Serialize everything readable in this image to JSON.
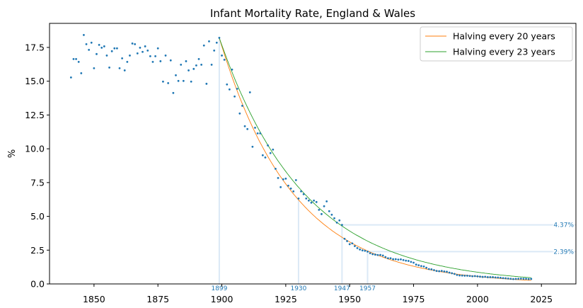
{
  "chart_data": {
    "type": "scatter",
    "title": "Infant Mortality Rate, England & Wales",
    "xlabel": "",
    "ylabel": "%",
    "xlim": [
      1832.6,
      2038.5
    ],
    "ylim": [
      0,
      19.28
    ],
    "xticks": [
      1850,
      1875,
      1900,
      1925,
      1950,
      1975,
      2000,
      2025
    ],
    "yticks": [
      "0.0",
      "2.5",
      "5.0",
      "7.5",
      "10.0",
      "12.5",
      "15.0",
      "17.5"
    ],
    "grid": false,
    "legend_position": "top-right",
    "colors": {
      "points": "#1f77b4",
      "halving20": "#ff7f0e",
      "halving23": "#2ca02c",
      "guides": "#dbe9f6"
    },
    "series": {
      "x_start": 1841,
      "values": [
        15.28,
        16.64,
        16.64,
        16.43,
        15.59,
        18.42,
        17.74,
        17.32,
        17.85,
        15.96,
        17.01,
        17.69,
        17.48,
        17.58,
        16.9,
        16.01,
        17.22,
        17.43,
        17.43,
        15.96,
        16.69,
        15.8,
        16.43,
        16.9,
        17.79,
        17.74,
        17.06,
        17.48,
        17.17,
        17.58,
        17.27,
        16.85,
        16.43,
        16.85,
        17.43,
        16.48,
        14.97,
        16.9,
        14.86,
        16.54,
        14.13,
        15.44,
        15.02,
        16.22,
        15.02,
        16.48,
        15.8,
        14.97,
        15.91,
        16.17,
        16.64,
        16.22,
        17.64,
        14.81,
        17.95,
        16.22,
        17.27,
        17.85,
        18.21,
        16.9,
        16.59,
        14.76,
        14.39,
        15.86,
        13.87,
        14.44,
        12.61,
        13.18,
        11.67,
        11.46,
        14.18,
        10.15,
        11.56,
        11.14,
        11.14,
        9.52,
        9.36,
        10.25,
        9.68,
        9.94,
        8.52,
        7.84,
        7.16,
        7.74,
        7.79,
        7.27,
        7.06,
        6.85,
        7.68,
        6.32,
        6.85,
        6.64,
        6.32,
        6.17,
        6.01,
        6.17,
        6.06,
        5.48,
        5.17,
        5.75,
        6.11,
        5.38,
        5.12,
        4.86,
        4.54,
        4.7,
        4.37,
        3.34,
        3.17,
        2.94,
        3.0,
        2.8,
        2.65,
        2.55,
        2.48,
        2.45,
        2.39,
        2.27,
        2.2,
        2.17,
        2.14,
        2.15,
        2.1,
        1.99,
        1.9,
        1.9,
        1.83,
        1.83,
        1.8,
        1.82,
        1.77,
        1.72,
        1.7,
        1.63,
        1.57,
        1.43,
        1.38,
        1.32,
        1.29,
        1.2,
        1.1,
        1.08,
        1.02,
        0.96,
        0.94,
        0.96,
        0.92,
        0.9,
        0.84,
        0.79,
        0.74,
        0.66,
        0.63,
        0.62,
        0.61,
        0.61,
        0.59,
        0.57,
        0.58,
        0.56,
        0.54,
        0.52,
        0.53,
        0.5,
        0.5,
        0.5,
        0.48,
        0.47,
        0.46,
        0.43,
        0.42,
        0.4,
        0.38,
        0.36,
        0.37,
        0.38,
        0.39,
        0.38,
        0.38,
        0.36,
        0.37
      ]
    },
    "fits": [
      {
        "name": "Halving every 20 years",
        "start_year": 1899,
        "start_value": 18.21,
        "halving_years": 20,
        "end_year": 2021
      },
      {
        "name": "Halving every 23 years",
        "start_year": 1899,
        "start_value": 18.21,
        "halving_years": 23,
        "end_year": 2021
      }
    ],
    "annotations": {
      "vertical": [
        {
          "year": 1899,
          "label": "1899",
          "top": 18.21
        },
        {
          "year": 1930,
          "label": "1930",
          "top": 6.32
        },
        {
          "year": 1947,
          "label": "1947",
          "top": 4.37
        },
        {
          "year": 1957,
          "label": "1957",
          "top": 2.39
        }
      ],
      "horizontal": [
        {
          "from_year": 1947,
          "value": 4.37,
          "label": "4.37%"
        },
        {
          "from_year": 1957,
          "value": 2.39,
          "label": "2.39%"
        }
      ]
    }
  }
}
